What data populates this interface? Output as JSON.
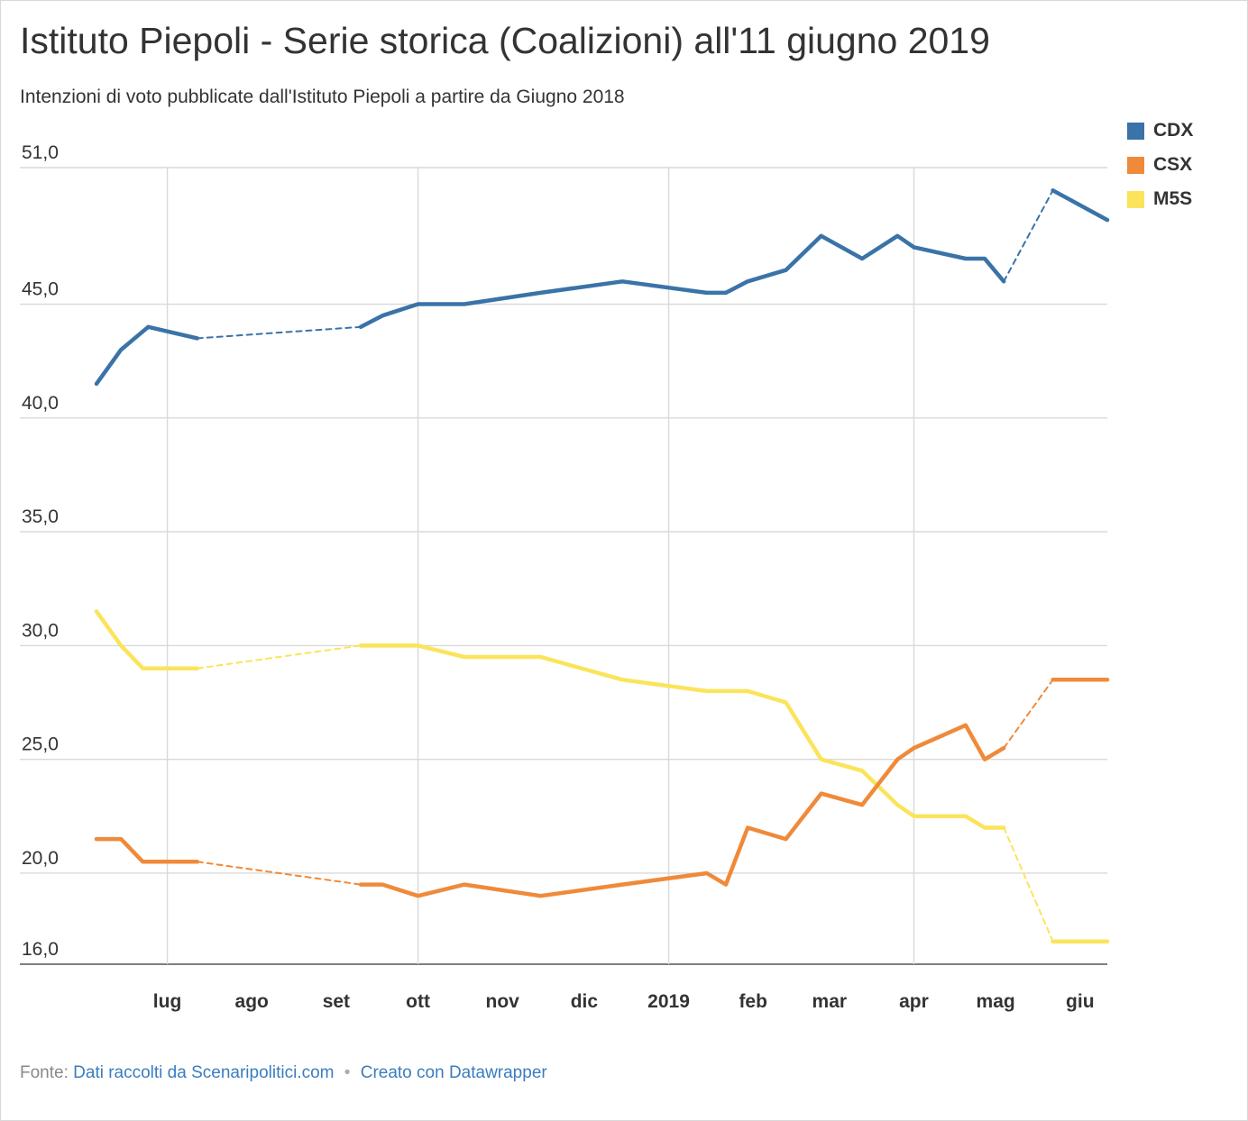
{
  "title": "Istituto Piepoli - Serie storica (Coalizioni) all'11 giugno 2019",
  "subtitle": "Intenzioni di voto pubblicate dall'Istituto Piepoli a partire da Giugno 2018",
  "footer": {
    "source_label": "Fonte:",
    "source_text": "Dati raccolti da Scenaripolitici.com",
    "separator": "•",
    "credit_text": "Creato con Datawrapper"
  },
  "colors": {
    "CDX": "#3a73a8",
    "CSX": "#ef8a3a",
    "M5S": "#fbe45b",
    "grid": "#d9d9d9",
    "text": "#333333"
  },
  "chart_data": {
    "type": "line",
    "title": "Istituto Piepoli - Serie storica (Coalizioni) all'11 giugno 2019",
    "xlabel": "",
    "ylabel": "",
    "legend_position": "top-right",
    "grid": true,
    "ylim": [
      16.0,
      51.0
    ],
    "yticks": [
      {
        "value": 51.0,
        "label": "51,0"
      },
      {
        "value": 45.0,
        "label": "45,0"
      },
      {
        "value": 40.0,
        "label": "40,0"
      },
      {
        "value": 35.0,
        "label": "35,0"
      },
      {
        "value": 30.0,
        "label": "30,0"
      },
      {
        "value": 25.0,
        "label": "25,0"
      },
      {
        "value": 20.0,
        "label": "20,0"
      },
      {
        "value": 16.0,
        "label": "16,0"
      }
    ],
    "xlim": [
      "2018-06-05",
      "2019-06-11"
    ],
    "xticks": [
      {
        "date": "2018-07-01",
        "label": "lug",
        "grid": true
      },
      {
        "date": "2018-08-01",
        "label": "ago",
        "grid": false
      },
      {
        "date": "2018-09-01",
        "label": "set",
        "grid": false
      },
      {
        "date": "2018-10-01",
        "label": "ott",
        "grid": true
      },
      {
        "date": "2018-11-01",
        "label": "nov",
        "grid": false
      },
      {
        "date": "2018-12-01",
        "label": "dic",
        "grid": false
      },
      {
        "date": "2019-01-01",
        "label": "2019",
        "grid": true
      },
      {
        "date": "2019-02-01",
        "label": "feb",
        "grid": false
      },
      {
        "date": "2019-03-01",
        "label": "mar",
        "grid": false
      },
      {
        "date": "2019-04-01",
        "label": "apr",
        "grid": true
      },
      {
        "date": "2019-05-01",
        "label": "mag",
        "grid": false
      },
      {
        "date": "2019-06-01",
        "label": "giu",
        "grid": false
      }
    ],
    "series": [
      {
        "name": "CDX",
        "segments": [
          {
            "style": "solid",
            "x": [
              "2018-06-05",
              "2018-06-14",
              "2018-06-24",
              "2018-07-12"
            ],
            "y": [
              41.5,
              43.0,
              44.0,
              43.5
            ]
          },
          {
            "style": "dashed",
            "x": [
              "2018-07-12",
              "2018-09-10"
            ],
            "y": [
              43.5,
              44.0
            ]
          },
          {
            "style": "solid",
            "x": [
              "2018-09-10",
              "2018-09-18",
              "2018-10-01",
              "2018-10-18",
              "2018-11-15",
              "2018-12-15",
              "2019-01-15",
              "2019-01-22",
              "2019-01-30",
              "2019-02-13",
              "2019-02-26",
              "2019-03-13",
              "2019-03-26",
              "2019-04-01",
              "2019-04-20",
              "2019-04-27",
              "2019-05-04"
            ],
            "y": [
              44.0,
              44.5,
              45.0,
              45.0,
              45.5,
              46.0,
              45.5,
              45.5,
              46.0,
              46.5,
              48.0,
              47.0,
              48.0,
              47.5,
              47.0,
              47.0,
              46.0
            ]
          },
          {
            "style": "dashed",
            "x": [
              "2019-05-04",
              "2019-05-22"
            ],
            "y": [
              46.0,
              50.0
            ]
          },
          {
            "style": "solid",
            "x": [
              "2019-05-22",
              "2019-06-11"
            ],
            "y": [
              50.0,
              48.7
            ]
          }
        ]
      },
      {
        "name": "CSX",
        "segments": [
          {
            "style": "solid",
            "x": [
              "2018-06-05",
              "2018-06-14",
              "2018-06-22",
              "2018-07-12"
            ],
            "y": [
              21.5,
              21.5,
              20.5,
              20.5
            ]
          },
          {
            "style": "dashed",
            "x": [
              "2018-07-12",
              "2018-09-10"
            ],
            "y": [
              20.5,
              19.5
            ]
          },
          {
            "style": "solid",
            "x": [
              "2018-09-10",
              "2018-09-18",
              "2018-10-01",
              "2018-10-18",
              "2018-11-15",
              "2018-12-15",
              "2019-01-15",
              "2019-01-22",
              "2019-01-30",
              "2019-02-13",
              "2019-02-26",
              "2019-03-13",
              "2019-03-26",
              "2019-04-01",
              "2019-04-20",
              "2019-04-27",
              "2019-05-04"
            ],
            "y": [
              19.5,
              19.5,
              19.0,
              19.5,
              19.0,
              19.5,
              20.0,
              19.5,
              22.0,
              21.5,
              23.5,
              23.0,
              25.0,
              25.5,
              26.5,
              25.0,
              25.5
            ]
          },
          {
            "style": "dashed",
            "x": [
              "2019-05-04",
              "2019-05-22"
            ],
            "y": [
              25.5,
              28.5
            ]
          },
          {
            "style": "solid",
            "x": [
              "2019-05-22",
              "2019-06-11"
            ],
            "y": [
              28.5,
              28.5
            ]
          }
        ]
      },
      {
        "name": "M5S",
        "segments": [
          {
            "style": "solid",
            "x": [
              "2018-06-05",
              "2018-06-14",
              "2018-06-22",
              "2018-07-12"
            ],
            "y": [
              31.5,
              30.0,
              29.0,
              29.0
            ]
          },
          {
            "style": "dashed",
            "x": [
              "2018-07-12",
              "2018-09-10"
            ],
            "y": [
              29.0,
              30.0
            ]
          },
          {
            "style": "solid",
            "x": [
              "2018-09-10",
              "2018-09-18",
              "2018-10-01",
              "2018-10-18",
              "2018-11-15",
              "2018-12-15",
              "2019-01-15",
              "2019-01-22",
              "2019-01-30",
              "2019-02-13",
              "2019-02-26",
              "2019-03-13",
              "2019-03-26",
              "2019-04-01",
              "2019-04-20",
              "2019-04-27",
              "2019-05-04"
            ],
            "y": [
              30.0,
              30.0,
              30.0,
              29.5,
              29.5,
              28.5,
              28.0,
              28.0,
              28.0,
              27.5,
              25.0,
              24.5,
              23.0,
              22.5,
              22.5,
              22.0,
              22.0
            ]
          },
          {
            "style": "dashed",
            "x": [
              "2019-05-04",
              "2019-05-22"
            ],
            "y": [
              22.0,
              17.0
            ]
          },
          {
            "style": "solid",
            "x": [
              "2019-05-22",
              "2019-06-11"
            ],
            "y": [
              17.0,
              17.0
            ]
          }
        ]
      }
    ]
  }
}
